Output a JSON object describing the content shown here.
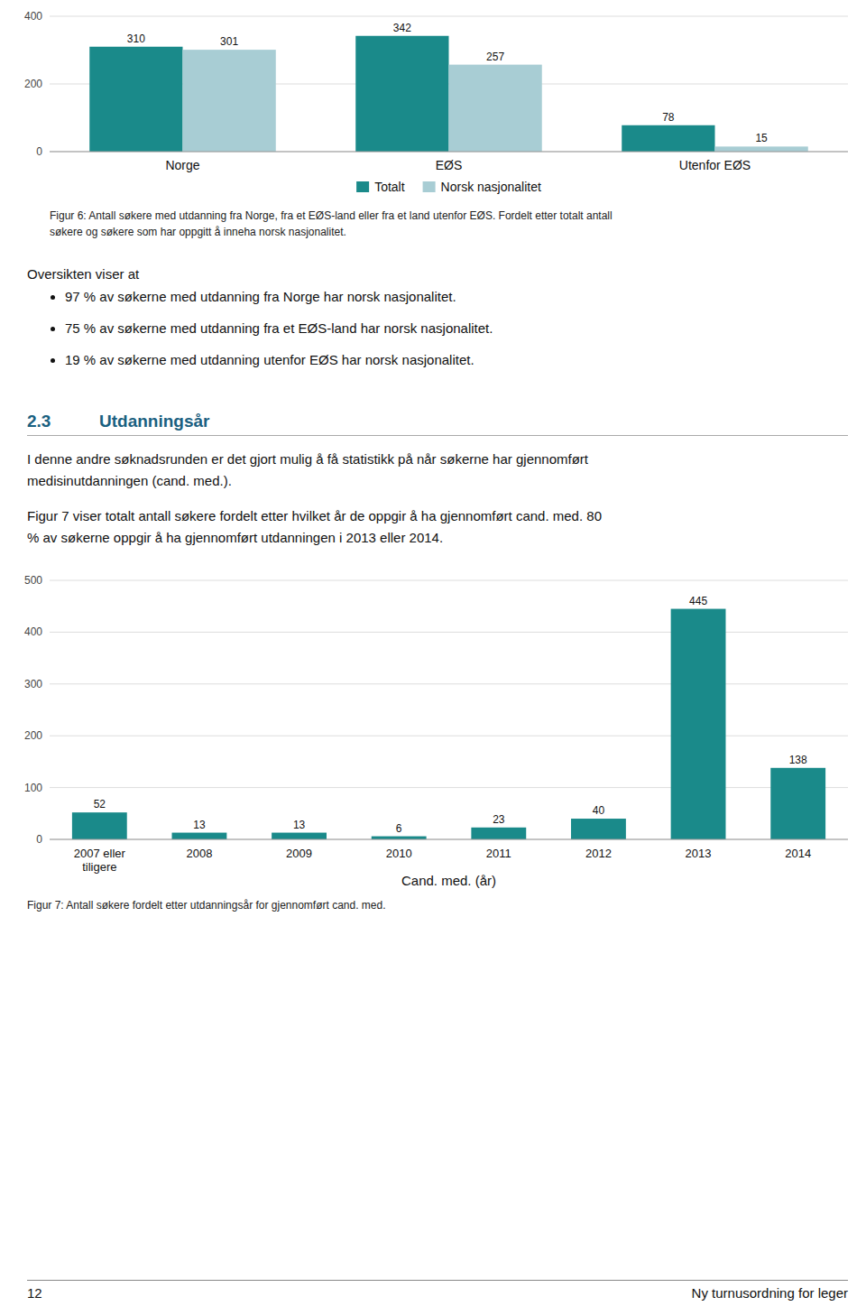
{
  "chart_data": [
    {
      "type": "bar",
      "categories": [
        "Norge",
        "EØS",
        "Utenfor EØS"
      ],
      "series": [
        {
          "name": "Totalt",
          "color": "#1a8a8a",
          "values": [
            310,
            342,
            78
          ]
        },
        {
          "name": "Norsk nasjonalitet",
          "color": "#a8cdd4",
          "values": [
            301,
            257,
            15
          ]
        }
      ],
      "ylim": [
        0,
        400
      ],
      "yticks": [
        0,
        200,
        400
      ],
      "grid": true,
      "legend": "bottom",
      "data_labels": true,
      "caption": [
        "Figur 6: Antall søkere med utdanning fra Norge, fra et EØS-land eller fra et land utenfor EØS. Fordelt etter totalt antall",
        "søkere og søkere som har oppgitt å inneha norsk nasjonalitet."
      ]
    },
    {
      "type": "bar",
      "categories": [
        "2007 eller\ntiligere",
        "2008",
        "2009",
        "2010",
        "2011",
        "2012",
        "2013",
        "2014"
      ],
      "values": [
        52,
        13,
        13,
        6,
        23,
        40,
        445,
        138
      ],
      "color": "#1a8a8a",
      "xlabel": "Cand. med. (år)",
      "ylim": [
        0,
        500
      ],
      "yticks": [
        0,
        100,
        200,
        300,
        400,
        500
      ],
      "grid": true,
      "data_labels": true,
      "caption": [
        "Figur 7: Antall søkere fordelt etter utdanningsår for gjennomført cand. med."
      ]
    }
  ],
  "page": {
    "intro": "Oversikten viser at",
    "bullets": [
      "97 % av søkerne med utdanning fra Norge har norsk nasjonalitet.",
      "75 % av søkerne med utdanning fra et EØS-land har norsk nasjonalitet.",
      "19 % av søkerne med utdanning utenfor EØS har norsk nasjonalitet."
    ],
    "section_num": "2.3",
    "section_title": "Utdanningsår",
    "paragraphs": [
      [
        "I denne andre søknadsrunden er det gjort mulig å få statistikk på når søkerne har gjennomført",
        "medisinutdanningen (cand. med.)."
      ],
      [
        "Figur 7 viser totalt antall søkere fordelt etter hvilket år de oppgir å ha gjennomført cand. med. 80",
        "% av søkerne oppgir å ha gjennomført utdanningen i 2013 eller 2014."
      ]
    ],
    "footer_left": "12",
    "footer_right": "Ny turnusordning for leger"
  }
}
